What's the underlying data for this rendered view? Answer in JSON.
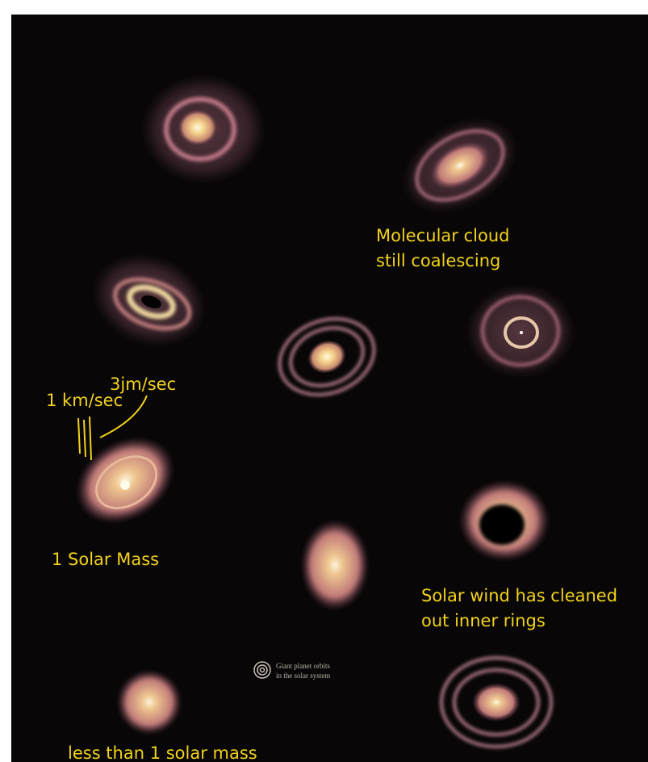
{
  "annotations": {
    "molecular_cloud": [
      "Molecular cloud",
      "still coalescing"
    ],
    "speed_3": "3jm/sec",
    "speed_1": "1 km/sec",
    "solar_mass": "1 Solar Mass",
    "solar_wind": [
      "Solar wind has cleaned",
      "out inner rings"
    ],
    "less_mass": "less than 1 solar mass"
  },
  "caption": [
    "Giant planet orbits",
    "in the solar system"
  ]
}
